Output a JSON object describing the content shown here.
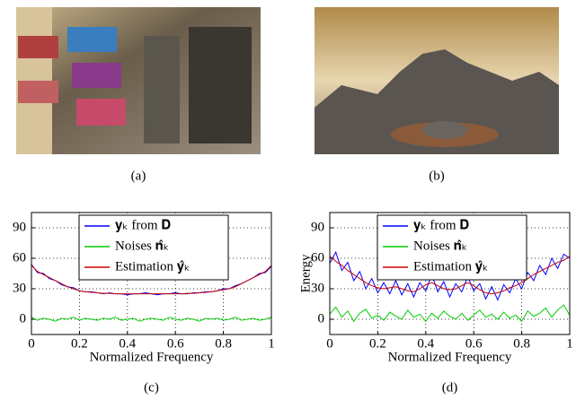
{
  "figures": [
    {
      "caption": "(a)"
    },
    {
      "caption": "(b)"
    }
  ],
  "chart_data": [
    {
      "type": "line",
      "caption": "(c)",
      "xlabel": "Normalized Frequency",
      "xlim": [
        0,
        1
      ],
      "ylim": [
        -15,
        105
      ],
      "xticks": [
        0,
        0.2,
        0.4,
        0.6,
        0.8,
        1
      ],
      "yticks": [
        0,
        30,
        60,
        90
      ],
      "grid": true,
      "legend": "top",
      "x": [
        0,
        0.025,
        0.05,
        0.075,
        0.1,
        0.125,
        0.15,
        0.175,
        0.2,
        0.225,
        0.25,
        0.275,
        0.3,
        0.325,
        0.35,
        0.375,
        0.4,
        0.425,
        0.45,
        0.475,
        0.5,
        0.525,
        0.55,
        0.575,
        0.6,
        0.625,
        0.65,
        0.675,
        0.7,
        0.725,
        0.75,
        0.775,
        0.8,
        0.825,
        0.85,
        0.875,
        0.9,
        0.925,
        0.95,
        0.975,
        1
      ],
      "series": [
        {
          "name": "𝐲ₖ from 𝐃",
          "color": "#0000ff",
          "values": [
            54,
            46,
            45,
            40,
            38,
            34,
            32,
            31,
            28,
            27,
            27,
            26,
            25,
            26,
            25,
            25,
            24,
            25,
            25,
            26,
            25,
            24,
            25,
            25,
            26,
            25,
            25,
            26,
            26,
            27,
            27,
            28,
            30,
            30,
            33,
            35,
            38,
            41,
            45,
            46,
            52
          ]
        },
        {
          "name": "Noises 𝐧̂ₖ",
          "color": "#00cc00",
          "values": [
            2,
            -1,
            1,
            0,
            -2,
            1,
            0,
            2,
            -1,
            1,
            0,
            -1,
            1,
            0,
            2,
            -1,
            0,
            1,
            -2,
            0,
            1,
            0,
            -1,
            2,
            0,
            -1,
            1,
            0,
            -2,
            1,
            0,
            1,
            -1,
            0,
            2,
            -1,
            0,
            1,
            -1,
            0,
            2
          ]
        },
        {
          "name": "Estimation 𝐲̂ₖ",
          "color": "#cc0000",
          "values": [
            53,
            47,
            44,
            41,
            38,
            35,
            32,
            30,
            28,
            27,
            26.5,
            26,
            25.5,
            25.5,
            25,
            25,
            25,
            25,
            25,
            25,
            25,
            25,
            25,
            25,
            25,
            25,
            25.5,
            25.5,
            26,
            26.5,
            27,
            28,
            29,
            30,
            32,
            35,
            38,
            41,
            44,
            47,
            53
          ]
        }
      ]
    },
    {
      "type": "line",
      "caption": "(d)",
      "xlabel": "Normalized Frequency",
      "ylabel": "Energy",
      "xlim": [
        0,
        1
      ],
      "ylim": [
        -15,
        105
      ],
      "xticks": [
        0,
        0.2,
        0.4,
        0.6,
        0.8,
        1
      ],
      "yticks": [
        0,
        30,
        60,
        90
      ],
      "grid": true,
      "legend": "top",
      "x": [
        0,
        0.025,
        0.05,
        0.075,
        0.1,
        0.125,
        0.15,
        0.175,
        0.2,
        0.225,
        0.25,
        0.275,
        0.3,
        0.325,
        0.35,
        0.375,
        0.4,
        0.425,
        0.45,
        0.475,
        0.5,
        0.525,
        0.55,
        0.575,
        0.6,
        0.625,
        0.65,
        0.675,
        0.7,
        0.725,
        0.75,
        0.775,
        0.8,
        0.825,
        0.85,
        0.875,
        0.9,
        0.925,
        0.95,
        0.975,
        1
      ],
      "series": [
        {
          "name": "𝐲ₖ from 𝐃",
          "color": "#0000ff",
          "values": [
            55,
            66,
            48,
            56,
            38,
            47,
            30,
            40,
            26,
            36,
            25,
            38,
            24,
            35,
            22,
            36,
            28,
            44,
            27,
            37,
            22,
            35,
            27,
            42,
            28,
            35,
            20,
            32,
            19,
            34,
            26,
            40,
            30,
            46,
            38,
            53,
            44,
            60,
            50,
            64,
            60
          ]
        },
        {
          "name": "Noises 𝐧̂ₖ",
          "color": "#00cc00",
          "values": [
            5,
            12,
            2,
            8,
            -2,
            6,
            10,
            1,
            4,
            -1,
            7,
            3,
            0,
            9,
            2,
            5,
            -2,
            6,
            1,
            8,
            3,
            0,
            6,
            -1,
            4,
            9,
            2,
            5,
            0,
            7,
            1,
            4,
            -2,
            8,
            3,
            6,
            11,
            2,
            9,
            14,
            4
          ]
        },
        {
          "name": "Estimation 𝐲̂ₖ",
          "color": "#cc0000",
          "values": [
            62,
            57,
            53,
            48,
            44,
            40,
            36,
            33,
            31,
            30,
            31,
            32,
            30,
            28,
            27,
            30,
            34,
            36,
            33,
            30,
            29,
            30,
            33,
            36,
            33,
            29,
            26,
            25,
            26,
            28,
            31,
            33,
            36,
            40,
            44,
            47,
            50,
            53,
            56,
            58,
            62
          ]
        }
      ]
    }
  ]
}
